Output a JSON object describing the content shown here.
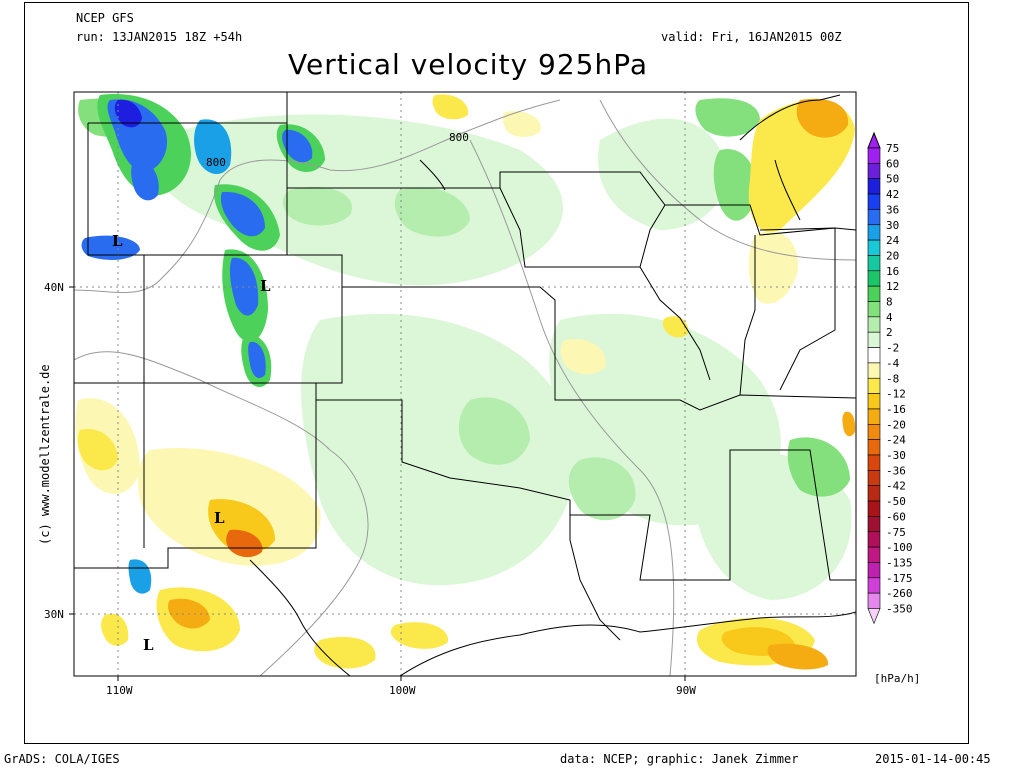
{
  "header": {
    "model": "NCEP GFS",
    "run": "run: 13JAN2015 18Z +54h",
    "valid": "valid: Fri, 16JAN2015 00Z",
    "title": "Vertical velocity 925hPa"
  },
  "credit_vertical": "(c) www.modellzentrale.de",
  "footer": {
    "left": "GrADS: COLA/IGES",
    "center": "data: NCEP; graphic: Janek Zimmer",
    "right": "2015-01-14-00:45"
  },
  "axes": {
    "lon_labels": [
      "110W",
      "100W",
      "90W"
    ],
    "lat_labels": [
      "40N",
      "30N"
    ],
    "contour_labels": [
      "800",
      "800"
    ],
    "low_markers": [
      "L",
      "L",
      "L",
      "L"
    ]
  },
  "legend": {
    "unit": "[hPa/h]",
    "levels": [
      {
        "label": "75",
        "color": "#a020f0"
      },
      {
        "label": "60",
        "color": "#6a1fd8"
      },
      {
        "label": "50",
        "color": "#1e1ee0"
      },
      {
        "label": "42",
        "color": "#1a3ff0"
      },
      {
        "label": "36",
        "color": "#2a6cf0"
      },
      {
        "label": "30",
        "color": "#1aa0e6"
      },
      {
        "label": "24",
        "color": "#18c8d8"
      },
      {
        "label": "20",
        "color": "#18c8a0"
      },
      {
        "label": "16",
        "color": "#1cc46a"
      },
      {
        "label": "12",
        "color": "#4cd25a"
      },
      {
        "label": "8",
        "color": "#84e07c"
      },
      {
        "label": "4",
        "color": "#b4edae"
      },
      {
        "label": "2",
        "color": "#dcf7d8"
      },
      {
        "label": "-2",
        "color": "#ffffff"
      },
      {
        "label": "-4",
        "color": "#fdf7b4"
      },
      {
        "label": "-8",
        "color": "#fbe84a"
      },
      {
        "label": "-12",
        "color": "#f8c81a"
      },
      {
        "label": "-16",
        "color": "#f5ab12"
      },
      {
        "label": "-20",
        "color": "#f08a10"
      },
      {
        "label": "-24",
        "color": "#e8680e"
      },
      {
        "label": "-30",
        "color": "#d8480c"
      },
      {
        "label": "-36",
        "color": "#c83a10"
      },
      {
        "label": "-42",
        "color": "#b82a14"
      },
      {
        "label": "-50",
        "color": "#a8141a"
      },
      {
        "label": "-60",
        "color": "#a01030"
      },
      {
        "label": "-75",
        "color": "#b0105a"
      },
      {
        "label": "-100",
        "color": "#c01882"
      },
      {
        "label": "-135",
        "color": "#c020b0"
      },
      {
        "label": "-175",
        "color": "#d040d8"
      },
      {
        "label": "-260",
        "color": "#e488ee"
      },
      {
        "label": "-350",
        "color": "#f6d0f8"
      }
    ]
  }
}
